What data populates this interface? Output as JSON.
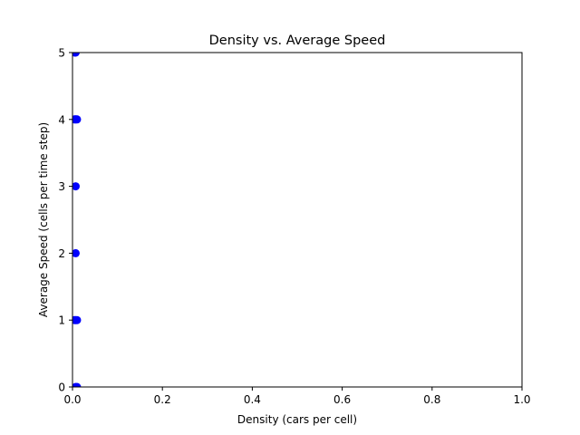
{
  "chart_data": {
    "type": "scatter",
    "title": "Density vs. Average Speed",
    "xlabel": "Density (cars per cell)",
    "ylabel": "Average Speed (cells per time step)",
    "xlim": [
      0,
      1
    ],
    "ylim": [
      0,
      5
    ],
    "xticks": [
      "0.0",
      "0.2",
      "0.4",
      "0.6",
      "0.8",
      "1.0"
    ],
    "yticks": [
      "0",
      "1",
      "2",
      "3",
      "4",
      "5"
    ],
    "grid": false,
    "marker_color": "#0000ff",
    "points": [
      {
        "x": 0.01,
        "y": 0
      },
      {
        "x": 0.007,
        "y": 0
      },
      {
        "x": 0.01,
        "y": 1
      },
      {
        "x": 0.007,
        "y": 1
      },
      {
        "x": 0.005,
        "y": 1
      },
      {
        "x": 0.007,
        "y": 2
      },
      {
        "x": 0.007,
        "y": 3
      },
      {
        "x": 0.01,
        "y": 4
      },
      {
        "x": 0.007,
        "y": 4
      },
      {
        "x": 0.005,
        "y": 4
      },
      {
        "x": 0.007,
        "y": 5
      },
      {
        "x": 0.005,
        "y": 5
      }
    ]
  }
}
